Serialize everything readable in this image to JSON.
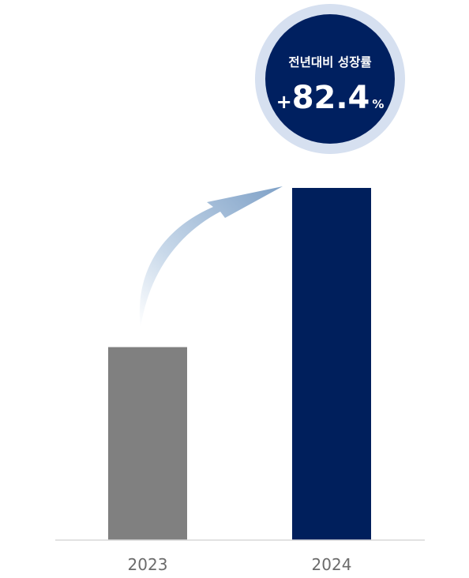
{
  "chart_data": {
    "type": "bar",
    "categories": [
      "2023",
      "2024"
    ],
    "values": [
      54.8,
      100
    ],
    "ylim": [
      0,
      100
    ],
    "grid": false,
    "bar_colors": [
      "#808080",
      "#001f5c"
    ],
    "axis_color": "#d9d9d9",
    "annotation": {
      "caption": "전년대비 성장률",
      "sign": "+",
      "value": "82.4",
      "unit": "%",
      "badge_color": "#002060",
      "badge_ring_color": "#d6e0f0",
      "arrow_color": "#9db7d5",
      "icon": "growth-curved-arrow-icon"
    }
  }
}
